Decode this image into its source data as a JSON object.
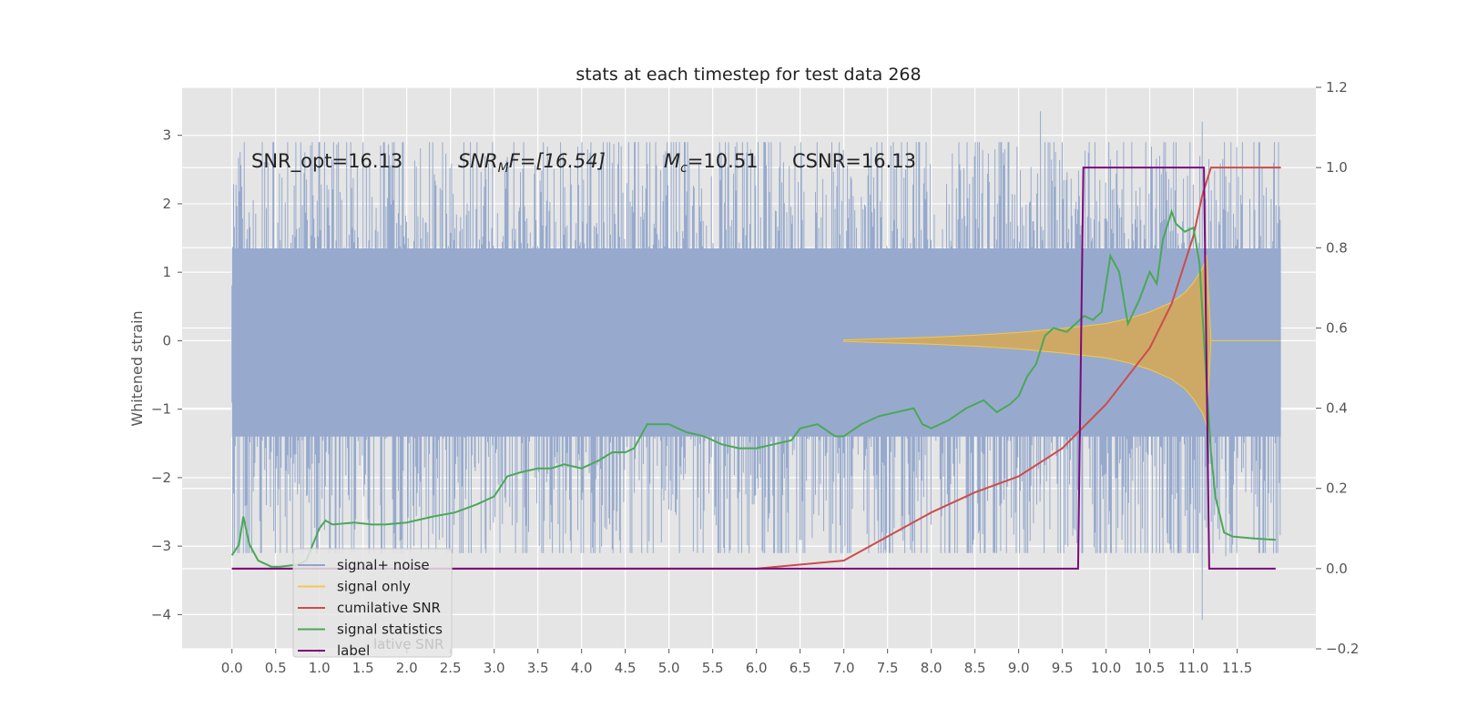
{
  "chart_data": {
    "type": "line",
    "title": "stats at each timestep for test data 268",
    "ylabel": "Whitened strain",
    "xlabel": "",
    "xlim": [
      -0.57,
      12.4
    ],
    "ylim": [
      -4.5,
      3.7
    ],
    "y2lim": [
      -0.2,
      1.2
    ],
    "grid": true,
    "legend_position": "lower-left",
    "x_ticks": [
      "0.0",
      "0.5",
      "1.0",
      "1.5",
      "2.0",
      "2.5",
      "3.0",
      "3.5",
      "4.0",
      "4.5",
      "5.0",
      "5.5",
      "6.0",
      "6.5",
      "7.0",
      "7.5",
      "8.0",
      "8.5",
      "9.0",
      "9.5",
      "10.0",
      "10.5",
      "11.0",
      "11.5"
    ],
    "y_ticks": [
      "3",
      "2",
      "1",
      "0",
      "−1",
      "−2",
      "−3",
      "−4"
    ],
    "y2_ticks": [
      "1.2",
      "1.0",
      "0.8",
      "0.6",
      "0.4",
      "0.2",
      "0.0",
      "−0.2"
    ],
    "annotations": {
      "snr_opt": "SNR_opt=16.13",
      "snr_mf_base": "SNR",
      "snr_mf_sub": "M",
      "snr_mf_rest": "F=[16.54]",
      "mc_base": "M",
      "mc_sub": "c",
      "mc_rest": "=10.51",
      "csnr": "CSNR=16.13"
    },
    "legend": [
      {
        "label": "signal+ noise",
        "color": "#8fa5cb"
      },
      {
        "label": "signal only",
        "color": "#f2c94c"
      },
      {
        "label": "cumilative SNR",
        "color": "#cc4c4c"
      },
      {
        "label": "signal statistics",
        "color": "#4aa858"
      },
      {
        "label": "label",
        "color": "#7b0a7b"
      }
    ],
    "legend_ghost": "lative SNR",
    "noise": {
      "x_start": 0.0,
      "x_end": 12.0,
      "envelope_upper": 1.35,
      "envelope_lower": -1.4,
      "spike_upper_max": 3.35,
      "spike_lower_min": -4.08
    },
    "signal_only": {
      "x": [
        7.0,
        7.5,
        8.0,
        8.5,
        9.0,
        9.5,
        10.0,
        10.25,
        10.5,
        10.75,
        10.9,
        11.0,
        11.05,
        11.1,
        11.13,
        11.15,
        11.2,
        12.0
      ],
      "amplitude": [
        0.01,
        0.03,
        0.05,
        0.08,
        0.12,
        0.18,
        0.25,
        0.32,
        0.42,
        0.56,
        0.7,
        0.85,
        0.95,
        1.05,
        1.15,
        1.25,
        0.0,
        0.0
      ]
    },
    "cumulative_snr": {
      "x": [
        0.0,
        6.0,
        7.0,
        7.5,
        8.0,
        8.5,
        9.0,
        9.5,
        10.0,
        10.5,
        10.75,
        11.0,
        11.1,
        11.2,
        12.0
      ],
      "y": [
        0.0,
        0.0,
        0.02,
        0.08,
        0.14,
        0.19,
        0.23,
        0.3,
        0.41,
        0.55,
        0.66,
        0.83,
        0.93,
        1.0,
        1.0
      ]
    },
    "signal_statistics": {
      "x": [
        0.0,
        0.08,
        0.13,
        0.2,
        0.3,
        0.45,
        0.55,
        0.75,
        0.85,
        1.0,
        1.07,
        1.15,
        1.4,
        1.6,
        1.75,
        2.0,
        2.3,
        2.55,
        2.8,
        3.0,
        3.15,
        3.3,
        3.5,
        3.65,
        3.8,
        4.0,
        4.2,
        4.35,
        4.5,
        4.6,
        4.75,
        5.0,
        5.2,
        5.4,
        5.6,
        5.8,
        6.0,
        6.2,
        6.4,
        6.5,
        6.7,
        6.9,
        7.0,
        7.2,
        7.4,
        7.6,
        7.8,
        7.9,
        8.0,
        8.2,
        8.4,
        8.6,
        8.75,
        8.9,
        9.0,
        9.1,
        9.2,
        9.3,
        9.4,
        9.55,
        9.65,
        9.75,
        9.85,
        9.95,
        10.05,
        10.15,
        10.25,
        10.38,
        10.5,
        10.58,
        10.65,
        10.75,
        10.8,
        10.9,
        11.0,
        11.07,
        11.15,
        11.2,
        11.25,
        11.35,
        11.45,
        11.55,
        11.7,
        11.94
      ],
      "y": [
        0.033,
        0.06,
        0.13,
        0.06,
        0.02,
        0.005,
        0.005,
        0.01,
        0.02,
        0.1,
        0.12,
        0.11,
        0.115,
        0.11,
        0.11,
        0.115,
        0.13,
        0.14,
        0.16,
        0.18,
        0.23,
        0.24,
        0.25,
        0.25,
        0.26,
        0.25,
        0.27,
        0.29,
        0.29,
        0.3,
        0.36,
        0.36,
        0.34,
        0.33,
        0.31,
        0.3,
        0.3,
        0.31,
        0.32,
        0.35,
        0.36,
        0.33,
        0.33,
        0.36,
        0.38,
        0.39,
        0.4,
        0.36,
        0.35,
        0.37,
        0.4,
        0.42,
        0.39,
        0.41,
        0.43,
        0.48,
        0.51,
        0.58,
        0.6,
        0.59,
        0.61,
        0.63,
        0.62,
        0.64,
        0.78,
        0.74,
        0.61,
        0.67,
        0.74,
        0.71,
        0.82,
        0.89,
        0.86,
        0.84,
        0.85,
        0.76,
        0.46,
        0.29,
        0.18,
        0.09,
        0.08,
        0.078,
        0.075,
        0.072
      ]
    },
    "label": {
      "x": [
        0.0,
        9.68,
        9.74,
        11.12,
        11.18,
        11.94
      ],
      "y": [
        0.0,
        0.0,
        1.0,
        1.0,
        0.0,
        0.0
      ]
    }
  }
}
